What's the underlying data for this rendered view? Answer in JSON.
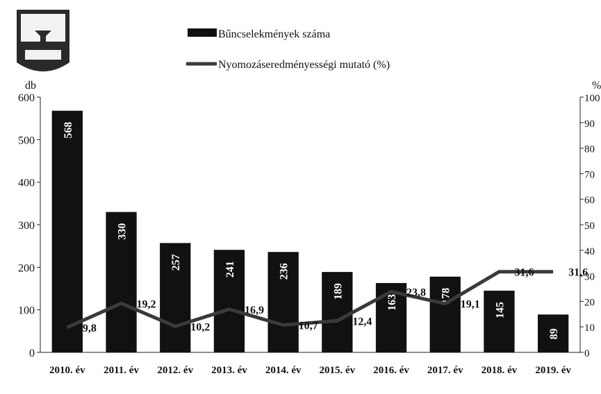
{
  "chart_data": {
    "type": "bar",
    "categories": [
      "2010. év",
      "2011. év",
      "2012. év",
      "2013. év",
      "2014. év",
      "2015. év",
      "2016. év",
      "2017. év",
      "2018. év",
      "2019. év"
    ],
    "series": [
      {
        "name": "Bűncselekmények száma",
        "type": "bar",
        "color": "#111111",
        "values": [
          568,
          330,
          257,
          241,
          236,
          189,
          163,
          178,
          145,
          89
        ]
      },
      {
        "name": "Nyomozáseredményességi mutató (%)",
        "type": "line",
        "axis": "y2",
        "color": "#3a3a3a",
        "values": [
          9.8,
          19.2,
          10.2,
          16.9,
          10.7,
          12.4,
          23.8,
          19.1,
          31.6,
          31.6
        ],
        "value_labels": [
          "9,8",
          "19,2",
          "10,2",
          "16,9",
          "10,7",
          "12,4",
          "23,8",
          "19,1",
          "31,6",
          "31,6"
        ]
      }
    ],
    "y_label": "db",
    "y2_label": "%",
    "ylim": [
      0,
      600
    ],
    "yticks": [
      0,
      100,
      200,
      300,
      400,
      500,
      600
    ],
    "y2lim": [
      0,
      100
    ],
    "y2ticks": [
      0,
      10,
      20,
      30,
      40,
      50,
      60,
      70,
      80,
      90,
      100
    ],
    "legend": "top"
  }
}
